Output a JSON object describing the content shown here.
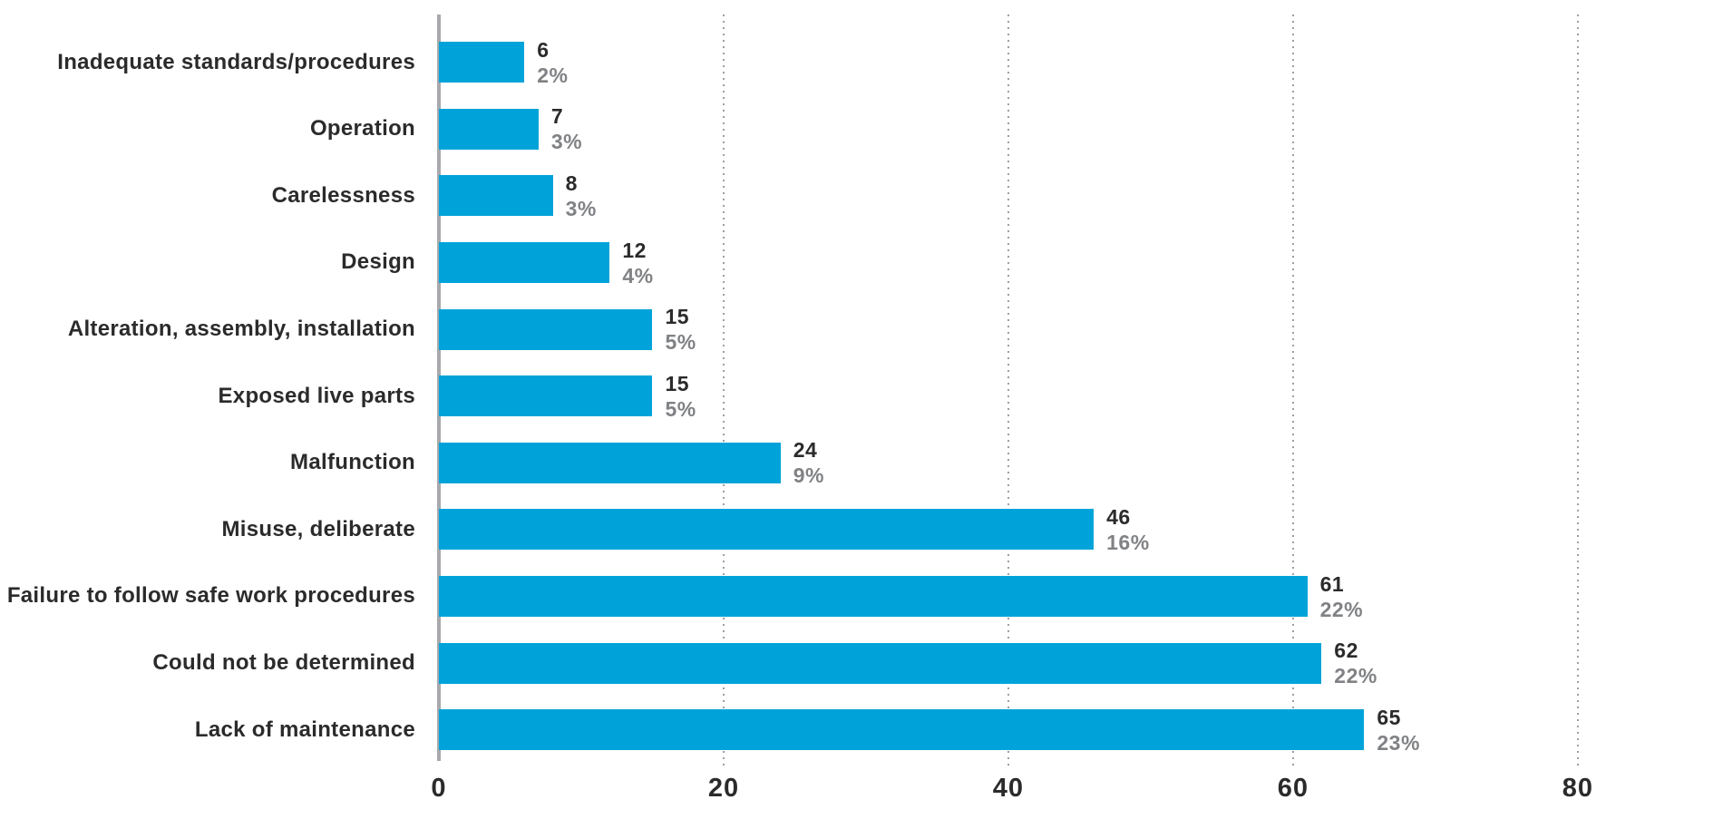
{
  "chart_data": {
    "type": "bar",
    "orientation": "horizontal",
    "title": "",
    "xlabel": "",
    "ylabel": "",
    "categories": [
      "Inadequate standards/procedures",
      "Operation",
      "Carelessness",
      "Design",
      "Alteration, assembly, installation",
      "Exposed live parts",
      "Malfunction",
      "Misuse, deliberate",
      "Failure to follow safe work procedures",
      "Could not be determined",
      "Lack of maintenance"
    ],
    "values": [
      6,
      7,
      8,
      12,
      15,
      15,
      24,
      46,
      61,
      62,
      65
    ],
    "percent_labels": [
      "2%",
      "3%",
      "3%",
      "4%",
      "5%",
      "5%",
      "9%",
      "16%",
      "22%",
      "22%",
      "23%"
    ],
    "xticks": [
      0,
      20,
      40,
      60,
      80
    ],
    "xlim": [
      0,
      89.5
    ],
    "grid": "dotted-vertical-gridlines",
    "legend": "none",
    "bar_color": "#00a3d9",
    "axis_line_color": "#a7a9ac",
    "category_label_color": "#2b2b2b",
    "value_label_color": "#2b2b2b",
    "percent_label_color": "#808285"
  }
}
